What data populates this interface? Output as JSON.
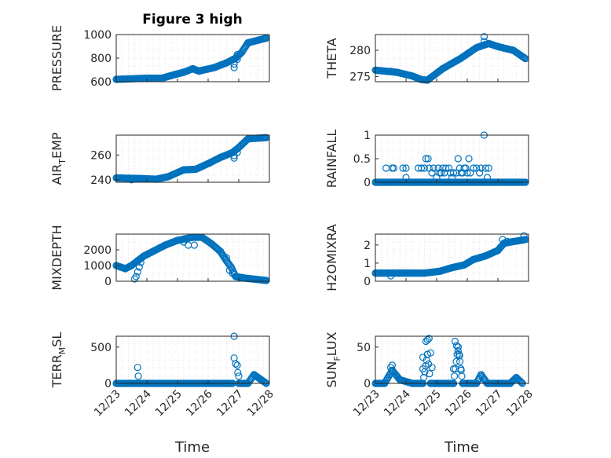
{
  "figure": {
    "title": "Figure 3 high",
    "marker_color": "#0072BD",
    "axis_color": "#262626",
    "grid_color": "#d9d9d9"
  },
  "chart_data": [
    {
      "type": "scatter",
      "ylabel": "PRESSURE",
      "ylim": [
        600,
        1000
      ],
      "yticks": [
        600,
        800,
        1000
      ],
      "xlim": [
        0,
        5
      ],
      "grid": true,
      "marker": "circle-open",
      "segments": [
        [
          0,
          620,
          1.0,
          630
        ],
        [
          1.0,
          630,
          1.5,
          630
        ],
        [
          1.5,
          630,
          1.9,
          660
        ],
        [
          1.9,
          660,
          2.2,
          680
        ],
        [
          2.2,
          680,
          2.5,
          710
        ],
        [
          2.5,
          710,
          2.7,
          690
        ],
        [
          2.7,
          690,
          3.2,
          720
        ],
        [
          3.2,
          720,
          3.6,
          760
        ],
        [
          3.6,
          760,
          3.9,
          800
        ],
        [
          3.9,
          800,
          4.1,
          850
        ],
        [
          4.1,
          850,
          4.3,
          930
        ],
        [
          4.3,
          930,
          4.9,
          970
        ]
      ],
      "points": [
        [
          3.85,
          720
        ],
        [
          3.85,
          750
        ],
        [
          3.95,
          790
        ],
        [
          3.95,
          830
        ]
      ]
    },
    {
      "type": "scatter",
      "ylabel": "THETA",
      "ylim": [
        274,
        283
      ],
      "yticks": [
        275,
        280
      ],
      "xlim": [
        0,
        5
      ],
      "grid": true,
      "marker": "circle-open",
      "segments": [
        [
          0,
          276.2,
          0.7,
          275.8
        ],
        [
          0.7,
          275.8,
          1.2,
          275.1
        ],
        [
          1.2,
          275.1,
          1.5,
          274.4
        ],
        [
          1.5,
          274.4,
          1.7,
          274.3
        ],
        [
          1.7,
          274.3,
          2.2,
          276.5
        ],
        [
          2.2,
          276.5,
          2.8,
          278.5
        ],
        [
          2.8,
          278.5,
          3.3,
          280.5
        ],
        [
          3.3,
          280.5,
          3.7,
          281.3
        ],
        [
          3.7,
          281.3,
          4.0,
          280.7
        ],
        [
          4.0,
          280.7,
          4.5,
          280.0
        ],
        [
          4.5,
          280.0,
          4.9,
          278.4
        ]
      ],
      "points": [
        [
          3.55,
          282.6
        ],
        [
          3.55,
          281.7
        ],
        [
          0.5,
          276.0
        ]
      ]
    },
    {
      "type": "scatter",
      "ylabel": "AIR_TEMP",
      "ylim": [
        238,
        276
      ],
      "yticks": [
        240,
        260
      ],
      "xlim": [
        0,
        5
      ],
      "grid": true,
      "marker": "circle-open",
      "segments": [
        [
          0,
          241.5,
          0.8,
          241.0
        ],
        [
          0.8,
          241.0,
          1.3,
          240.5
        ],
        [
          1.3,
          240.5,
          1.7,
          242.5
        ],
        [
          1.7,
          242.5,
          2.2,
          248.0
        ],
        [
          2.2,
          248.0,
          2.6,
          248.5
        ],
        [
          2.6,
          248.5,
          3.0,
          253.0
        ],
        [
          3.0,
          253.0,
          3.4,
          258.0
        ],
        [
          3.4,
          258.0,
          3.8,
          262.0
        ],
        [
          3.8,
          262.0,
          4.0,
          266.0
        ],
        [
          4.0,
          266.0,
          4.3,
          273.0
        ],
        [
          4.3,
          273.0,
          4.9,
          274.0
        ]
      ],
      "points": [
        [
          3.85,
          257.5
        ],
        [
          3.85,
          259.5
        ],
        [
          3.95,
          262.0
        ],
        [
          0.5,
          240.0
        ]
      ]
    },
    {
      "type": "scatter",
      "ylabel": "RAINFALL",
      "ylim": [
        0,
        1
      ],
      "yticks": [
        0,
        0.5,
        1
      ],
      "xlim": [
        0,
        5
      ],
      "grid": true,
      "marker": "circle-open",
      "segments": [
        [
          0,
          0,
          4.9,
          0
        ]
      ],
      "points": [
        [
          0.1,
          0
        ],
        [
          0.35,
          0.3
        ],
        [
          0.6,
          0.3
        ],
        [
          0.55,
          0.3
        ],
        [
          0.9,
          0.3
        ],
        [
          1.0,
          0.3
        ],
        [
          1.0,
          0.1
        ],
        [
          1.3,
          0
        ],
        [
          1.4,
          0.3
        ],
        [
          1.5,
          0.3
        ],
        [
          1.6,
          0.3
        ],
        [
          1.65,
          0.5
        ],
        [
          1.72,
          0.5
        ],
        [
          1.75,
          0.3
        ],
        [
          1.85,
          0.2
        ],
        [
          1.9,
          0.3
        ],
        [
          2.0,
          0.1
        ],
        [
          2.05,
          0.3
        ],
        [
          2.1,
          0.2
        ],
        [
          2.15,
          0.2
        ],
        [
          2.2,
          0.3
        ],
        [
          2.25,
          0.2
        ],
        [
          2.3,
          0.3
        ],
        [
          2.4,
          0.3
        ],
        [
          2.45,
          0.2
        ],
        [
          2.5,
          0.1
        ],
        [
          2.55,
          0.2
        ],
        [
          2.65,
          0.2
        ],
        [
          2.7,
          0.5
        ],
        [
          2.75,
          0.3
        ],
        [
          2.8,
          0.2
        ],
        [
          2.85,
          0.2
        ],
        [
          2.9,
          0.3
        ],
        [
          2.95,
          0.3
        ],
        [
          3.0,
          0.2
        ],
        [
          3.05,
          0.5
        ],
        [
          3.1,
          0.2
        ],
        [
          3.2,
          0.3
        ],
        [
          3.3,
          0.3
        ],
        [
          3.4,
          0.2
        ],
        [
          3.45,
          0.3
        ],
        [
          3.6,
          0.3
        ],
        [
          3.55,
          1.0
        ],
        [
          3.65,
          0.1
        ],
        [
          3.7,
          0.3
        ]
      ]
    },
    {
      "type": "scatter",
      "ylabel": "MIXDEPTH",
      "ylim": [
        0,
        3000
      ],
      "yticks": [
        0,
        1000,
        2000
      ],
      "xlim": [
        0,
        5
      ],
      "grid": true,
      "marker": "circle-open",
      "segments": [
        [
          0,
          1000,
          0.3,
          800
        ],
        [
          0.3,
          800,
          0.5,
          1000
        ],
        [
          0.5,
          1000,
          0.7,
          1300
        ],
        [
          0.7,
          1300,
          0.9,
          1600
        ],
        [
          0.9,
          1600,
          1.2,
          1900
        ],
        [
          1.2,
          1900,
          1.6,
          2300
        ],
        [
          1.6,
          2300,
          2.0,
          2600
        ],
        [
          2.0,
          2600,
          2.5,
          2800
        ],
        [
          2.5,
          2800,
          2.8,
          2800
        ],
        [
          2.8,
          2800,
          3.1,
          2400
        ],
        [
          3.1,
          2400,
          3.4,
          1900
        ],
        [
          3.4,
          1900,
          3.6,
          1300
        ],
        [
          3.6,
          1300,
          3.75,
          900
        ],
        [
          3.75,
          900,
          3.9,
          300
        ],
        [
          3.9,
          300,
          4.2,
          200
        ],
        [
          4.2,
          200,
          4.9,
          50
        ]
      ],
      "points": [
        [
          0.6,
          150
        ],
        [
          0.65,
          300
        ],
        [
          0.7,
          600
        ],
        [
          0.75,
          900
        ],
        [
          0.8,
          1200
        ],
        [
          2.2,
          2500
        ],
        [
          2.35,
          2300
        ],
        [
          2.55,
          2300
        ],
        [
          3.6,
          1500
        ],
        [
          3.7,
          700
        ],
        [
          3.8,
          500
        ]
      ]
    },
    {
      "type": "scatter",
      "ylabel": "H2OMIXRA",
      "ylim": [
        0,
        2.6
      ],
      "yticks": [
        0,
        1,
        2
      ],
      "xlim": [
        0,
        5
      ],
      "grid": true,
      "marker": "circle-open",
      "segments": [
        [
          0,
          0.45,
          1.0,
          0.45
        ],
        [
          1.0,
          0.45,
          1.6,
          0.45
        ],
        [
          1.6,
          0.45,
          2.1,
          0.55
        ],
        [
          2.1,
          0.55,
          2.5,
          0.75
        ],
        [
          2.5,
          0.75,
          2.9,
          0.9
        ],
        [
          2.9,
          0.9,
          3.2,
          1.2
        ],
        [
          3.2,
          1.2,
          3.6,
          1.4
        ],
        [
          3.6,
          1.4,
          4.0,
          1.7
        ],
        [
          4.0,
          1.7,
          4.2,
          2.1
        ],
        [
          4.2,
          2.1,
          4.9,
          2.3
        ]
      ],
      "points": [
        [
          0.5,
          0.3
        ],
        [
          4.85,
          2.5
        ],
        [
          4.15,
          2.3
        ],
        [
          4.3,
          2.2
        ]
      ]
    },
    {
      "type": "scatter",
      "ylabel": "TERR_MSL",
      "ylim": [
        0,
        650
      ],
      "yticks": [
        0,
        500
      ],
      "xlim": [
        0,
        5
      ],
      "grid": true,
      "marker": "circle-open",
      "segments": [
        [
          0,
          0,
          3.8,
          0
        ],
        [
          4.0,
          0,
          4.3,
          0
        ],
        [
          4.3,
          0,
          4.5,
          120
        ],
        [
          4.5,
          120,
          4.7,
          60
        ],
        [
          4.7,
          60,
          4.9,
          0
        ]
      ],
      "points": [
        [
          0.7,
          220
        ],
        [
          0.72,
          100
        ],
        [
          3.85,
          650
        ],
        [
          3.85,
          350
        ],
        [
          3.9,
          270
        ],
        [
          3.95,
          250
        ],
        [
          3.97,
          150
        ],
        [
          4.0,
          100
        ]
      ]
    },
    {
      "type": "scatter",
      "ylabel": "SUN_FLUX",
      "ylim": [
        0,
        65
      ],
      "yticks": [
        0,
        50
      ],
      "xlim": [
        0,
        5
      ],
      "grid": true,
      "marker": "circle-open",
      "segments": [
        [
          0,
          0,
          0.3,
          0
        ],
        [
          0.3,
          0,
          0.55,
          18
        ],
        [
          0.55,
          18,
          0.8,
          5
        ],
        [
          0.8,
          5,
          1.2,
          0
        ],
        [
          1.2,
          0,
          1.55,
          0
        ],
        [
          1.55,
          0,
          1.7,
          40
        ],
        [
          1.7,
          40,
          1.8,
          0
        ],
        [
          1.8,
          0,
          2.55,
          0
        ],
        [
          2.55,
          0,
          2.7,
          50
        ],
        [
          2.7,
          50,
          2.85,
          0
        ],
        [
          2.85,
          0,
          3.3,
          0
        ],
        [
          3.3,
          0,
          3.45,
          12
        ],
        [
          3.45,
          12,
          3.65,
          0
        ],
        [
          3.65,
          0,
          4.4,
          0
        ],
        [
          4.4,
          0,
          4.6,
          8
        ],
        [
          4.6,
          8,
          4.8,
          0
        ]
      ],
      "points": [
        [
          1.65,
          58
        ],
        [
          1.7,
          60
        ],
        [
          1.75,
          62
        ],
        [
          1.8,
          42
        ],
        [
          1.85,
          22
        ],
        [
          1.55,
          36
        ],
        [
          1.55,
          20
        ],
        [
          2.6,
          58
        ],
        [
          2.65,
          52
        ],
        [
          2.7,
          45
        ],
        [
          2.75,
          38
        ],
        [
          2.55,
          20
        ],
        [
          2.8,
          18
        ],
        [
          0.5,
          22
        ],
        [
          0.55,
          25
        ]
      ]
    }
  ],
  "x_axis": {
    "ticks": [
      "12/23",
      "12/24",
      "12/25",
      "12/26",
      "12/27",
      "12/28"
    ],
    "label_left": "Time",
    "label_right": "Time"
  }
}
